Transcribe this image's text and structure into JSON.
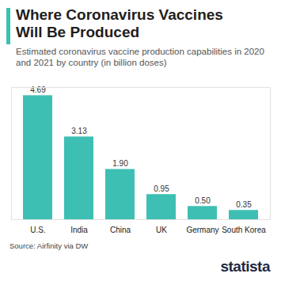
{
  "chart_data": {
    "type": "bar",
    "title": "Where Coronavirus Vaccines Will Be Produced",
    "subtitle": "Estimated coronavirus vaccine production capabilities in 2020 and 2021 by country (in billion doses)",
    "caption": "Source: Airfinity via DW",
    "annotations": [
      "statista"
    ],
    "categories": [
      "U.S.",
      "India",
      "China",
      "UK",
      "Germany",
      "South Korea"
    ],
    "values": [
      4.69,
      3.13,
      1.9,
      0.95,
      0.5,
      0.35
    ],
    "value_labels": [
      "4.69",
      "3.13",
      "1.90",
      "0.95",
      "0.50",
      "0.35"
    ],
    "color": "#3dbfb3",
    "ylim": [
      0,
      5
    ],
    "yticks": [],
    "data_labels": true,
    "tick_labels": "x",
    "grid": false
  }
}
